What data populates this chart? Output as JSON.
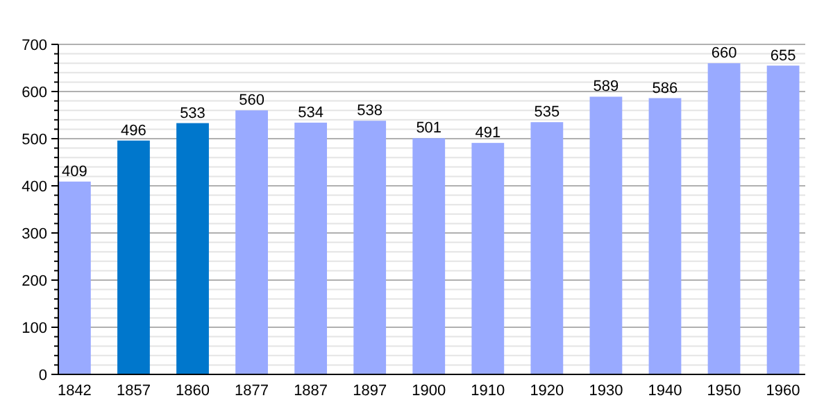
{
  "chart_data": {
    "type": "bar",
    "categories": [
      "1842",
      "1857",
      "1860",
      "1877",
      "1887",
      "1897",
      "1900",
      "1910",
      "1920",
      "1930",
      "1940",
      "1950",
      "1960"
    ],
    "values": [
      409,
      496,
      533,
      560,
      534,
      538,
      501,
      491,
      535,
      589,
      586,
      660,
      655
    ],
    "colors": [
      "#99aaff",
      "#0077cc",
      "#0077cc",
      "#99aaff",
      "#99aaff",
      "#99aaff",
      "#99aaff",
      "#99aaff",
      "#99aaff",
      "#99aaff",
      "#99aaff",
      "#99aaff",
      "#99aaff"
    ],
    "ylim": [
      0,
      700
    ],
    "yticks": [
      0,
      {
        "value": 20,
        "label": null
      },
      {
        "value": 40,
        "label": null
      },
      {
        "value": 60,
        "label": null
      },
      {
        "value": 80,
        "label": null
      },
      100,
      {
        "value": 120,
        "label": null
      },
      {
        "value": 140,
        "label": null
      },
      {
        "value": 160,
        "label": null
      },
      {
        "value": 180,
        "label": null
      },
      200,
      {
        "value": 220,
        "label": null
      },
      {
        "value": 240,
        "label": null
      },
      {
        "value": 260,
        "label": null
      },
      {
        "value": 280,
        "label": null
      },
      300,
      {
        "value": 320,
        "label": null
      },
      {
        "value": 340,
        "label": null
      },
      {
        "value": 360,
        "label": null
      },
      {
        "value": 380,
        "label": null
      },
      400,
      {
        "value": 420,
        "label": null
      },
      {
        "value": 440,
        "label": null
      },
      {
        "value": 460,
        "label": null
      },
      {
        "value": 480,
        "label": null
      },
      500,
      {
        "value": 520,
        "label": null
      },
      {
        "value": 540,
        "label": null
      },
      {
        "value": 560,
        "label": null
      },
      {
        "value": 580,
        "label": null
      },
      600,
      {
        "value": 620,
        "label": null
      },
      {
        "value": 640,
        "label": null
      },
      {
        "value": 660,
        "label": null
      },
      {
        "value": 680,
        "label": null
      },
      700
    ],
    "grid": true,
    "data_labels": true
  }
}
